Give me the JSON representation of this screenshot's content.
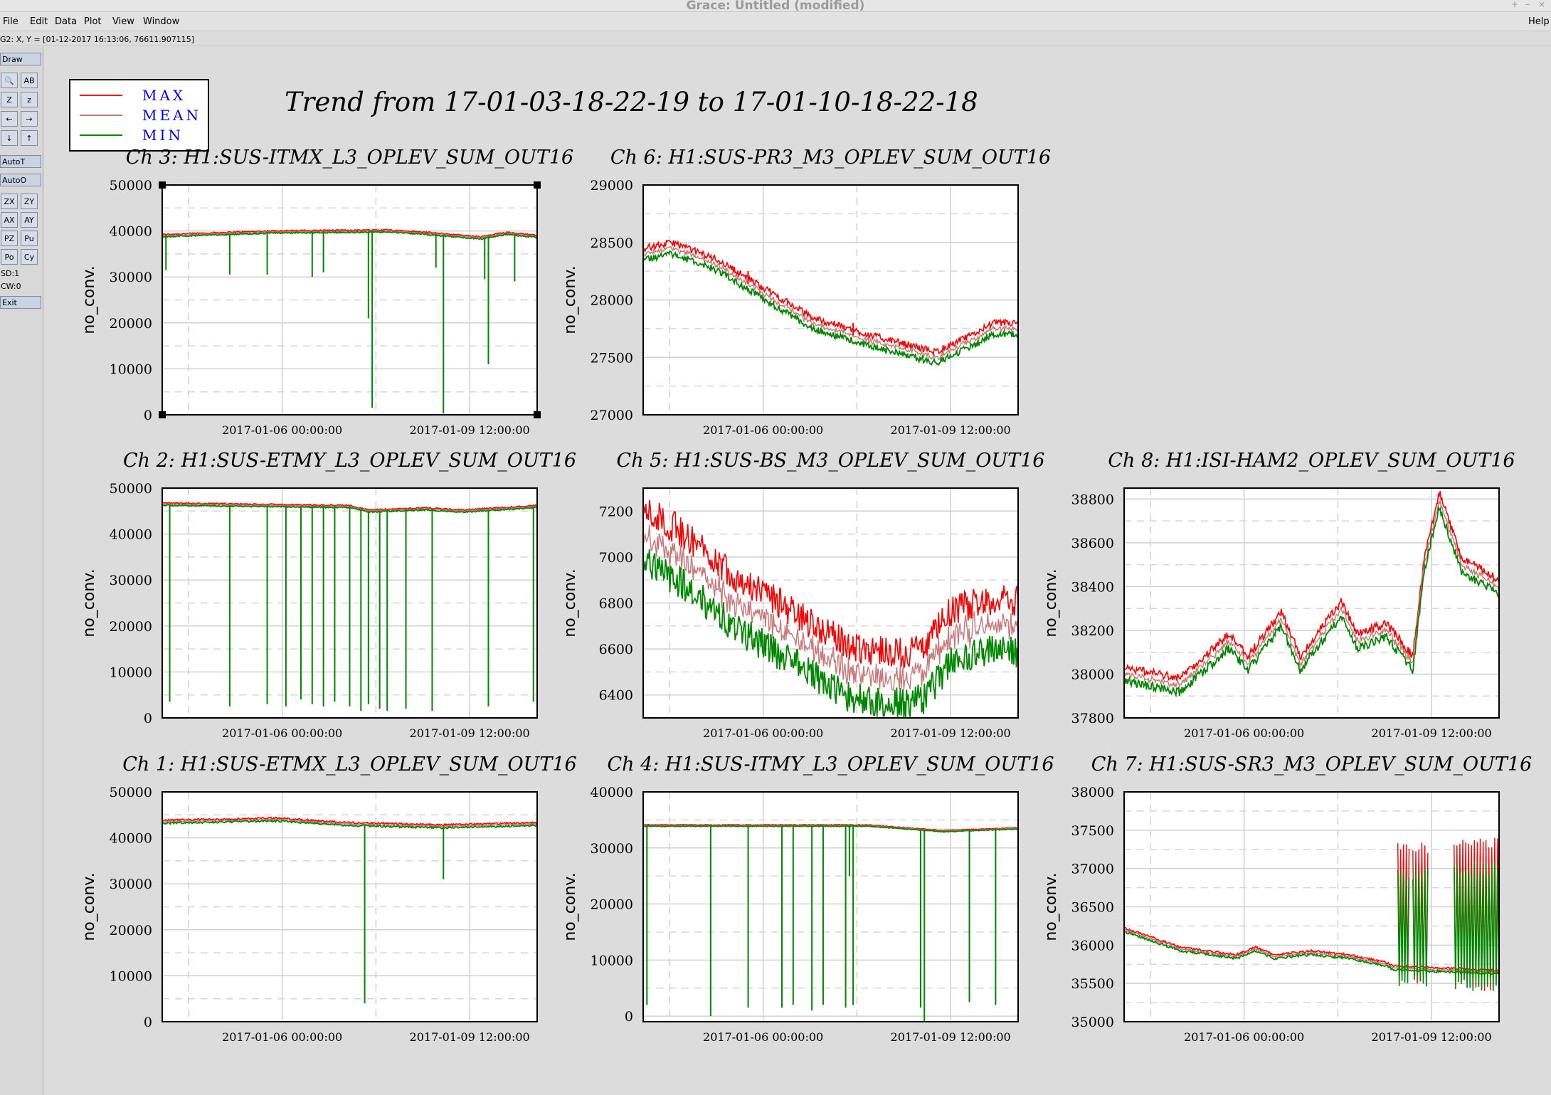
{
  "window": {
    "title": "Grace: Untitled (modified)",
    "controls": [
      "+",
      "–",
      "×"
    ]
  },
  "menu": {
    "items": [
      "File",
      "Edit",
      "Data",
      "Plot",
      "View",
      "Window"
    ],
    "help": "Help"
  },
  "status": {
    "text": "G2: X, Y = [01-12-2017 16:13:06, 76611.907115]"
  },
  "toolbar": {
    "draw": "Draw",
    "tools": [
      [
        "🔍",
        "AB"
      ],
      [
        "Z",
        "z"
      ],
      [
        "←",
        "→"
      ],
      [
        "↓",
        "↑"
      ]
    ],
    "autot": "AutoT",
    "autoo": "AutoO",
    "pairs": [
      [
        "ZX",
        "ZY"
      ],
      [
        "AX",
        "AY"
      ],
      [
        "PZ",
        "Pu"
      ],
      [
        "Po",
        "Cy"
      ]
    ],
    "sd": "SD:1",
    "cw": "CW:0",
    "exit": "Exit"
  },
  "figure": {
    "title": "Trend from 17-01-03-18-22-19 to 17-01-10-18-22-18",
    "legend": [
      {
        "label": "MAX",
        "color": "#ff0000"
      },
      {
        "label": "MEAN",
        "color": "#c87878"
      },
      {
        "label": "MIN",
        "color": "#008800"
      }
    ],
    "xtick_labels": [
      "2017-01-06 00:00:00",
      "2017-01-09 12:00:00"
    ]
  },
  "chart_data": [
    {
      "type": "line",
      "title": "Ch 3: H1:SUS-ITMX_L3_OPLEV_SUM_OUT16",
      "ylabel": "no_conv.",
      "ylim": [
        0,
        50000
      ],
      "yticks": [
        0,
        10000,
        20000,
        30000,
        40000,
        50000
      ],
      "base": [
        [
          0,
          39000
        ],
        [
          0.3,
          39800
        ],
        [
          0.6,
          40000
        ],
        [
          0.7,
          39500
        ],
        [
          0.85,
          38500
        ],
        [
          0.92,
          39500
        ],
        [
          1,
          38800
        ]
      ],
      "noise": 300,
      "dips": [
        [
          0.01,
          31500
        ],
        [
          0.18,
          30500
        ],
        [
          0.28,
          30500
        ],
        [
          0.4,
          30000
        ],
        [
          0.43,
          31000
        ],
        [
          0.55,
          21000
        ],
        [
          0.56,
          1500
        ],
        [
          0.73,
          32000
        ],
        [
          0.75,
          300
        ],
        [
          0.86,
          29500
        ],
        [
          0.87,
          11000
        ],
        [
          0.94,
          29000
        ]
      ],
      "spikes": []
    },
    {
      "type": "line",
      "title": "Ch 6: H1:SUS-PR3_M3_OPLEV_SUM_OUT16",
      "ylabel": "no_conv.",
      "ylim": [
        27000,
        29000
      ],
      "yticks": [
        27000,
        27500,
        28000,
        28500,
        29000
      ],
      "base": [
        [
          0,
          28400
        ],
        [
          0.08,
          28450
        ],
        [
          0.2,
          28300
        ],
        [
          0.35,
          28000
        ],
        [
          0.45,
          27800
        ],
        [
          0.6,
          27650
        ],
        [
          0.78,
          27500
        ],
        [
          0.88,
          27650
        ],
        [
          0.93,
          27750
        ],
        [
          1,
          27750
        ]
      ],
      "noise": 60,
      "dips": [],
      "spikes": [
        [
          0.28,
          28250
        ],
        [
          0.56,
          27800
        ]
      ]
    },
    {
      "type": "line",
      "title": "Ch 2: H1:SUS-ETMY_L3_OPLEV_SUM_OUT16",
      "ylabel": "no_conv.",
      "ylim": [
        0,
        50000
      ],
      "yticks": [
        0,
        10000,
        20000,
        30000,
        40000,
        50000
      ],
      "base": [
        [
          0,
          46500
        ],
        [
          0.3,
          46200
        ],
        [
          0.5,
          46000
        ],
        [
          0.55,
          45000
        ],
        [
          0.7,
          45500
        ],
        [
          0.8,
          45000
        ],
        [
          1,
          46000
        ]
      ],
      "noise": 300,
      "dips": [
        [
          0.02,
          3500
        ],
        [
          0.18,
          2500
        ],
        [
          0.28,
          3000
        ],
        [
          0.33,
          2500
        ],
        [
          0.37,
          4000
        ],
        [
          0.4,
          3000
        ],
        [
          0.43,
          2500
        ],
        [
          0.46,
          3500
        ],
        [
          0.5,
          2500
        ],
        [
          0.53,
          1500
        ],
        [
          0.55,
          3000
        ],
        [
          0.58,
          2000
        ],
        [
          0.6,
          1500
        ],
        [
          0.65,
          2000
        ],
        [
          0.72,
          1500
        ],
        [
          0.87,
          2500
        ],
        [
          0.99,
          3500
        ]
      ],
      "spikes": []
    },
    {
      "type": "line",
      "title": "Ch 5: H1:SUS-BS_M3_OPLEV_SUM_OUT16",
      "ylabel": "no_conv.",
      "ylim": [
        6300,
        7300
      ],
      "yticks": [
        6400,
        6600,
        6800,
        7000,
        7200
      ],
      "base": [
        [
          0,
          7100
        ],
        [
          0.1,
          7000
        ],
        [
          0.25,
          6800
        ],
        [
          0.4,
          6650
        ],
        [
          0.55,
          6500
        ],
        [
          0.7,
          6470
        ],
        [
          0.75,
          6500
        ],
        [
          0.82,
          6650
        ],
        [
          0.9,
          6700
        ],
        [
          1,
          6700
        ]
      ],
      "noise": 140,
      "dips": [],
      "spikes": []
    },
    {
      "type": "line",
      "title": "Ch 8: H1:ISI-HAM2_OPLEV_SUM_OUT16",
      "ylabel": "no_conv.",
      "ylim": [
        37800,
        38850
      ],
      "yticks": [
        37800,
        38000,
        38200,
        38400,
        38600,
        38800
      ],
      "base": [
        [
          0,
          38000
        ],
        [
          0.15,
          37950
        ],
        [
          0.28,
          38150
        ],
        [
          0.33,
          38050
        ],
        [
          0.42,
          38250
        ],
        [
          0.47,
          38050
        ],
        [
          0.58,
          38300
        ],
        [
          0.62,
          38150
        ],
        [
          0.7,
          38200
        ],
        [
          0.77,
          38050
        ],
        [
          0.8,
          38500
        ],
        [
          0.84,
          38800
        ],
        [
          0.9,
          38500
        ],
        [
          1,
          38400
        ]
      ],
      "noise": 40,
      "dips": [],
      "spikes": []
    },
    {
      "type": "line",
      "title": "Ch 1: H1:SUS-ETMX_L3_OPLEV_SUM_OUT16",
      "ylabel": "no_conv.",
      "ylim": [
        0,
        50000
      ],
      "yticks": [
        0,
        10000,
        20000,
        30000,
        40000,
        50000
      ],
      "base": [
        [
          0,
          43500
        ],
        [
          0.3,
          44000
        ],
        [
          0.5,
          43000
        ],
        [
          0.75,
          42500
        ],
        [
          1,
          43000
        ]
      ],
      "noise": 400,
      "dips": [
        [
          0.54,
          4000
        ],
        [
          0.75,
          31000
        ]
      ],
      "spikes": []
    },
    {
      "type": "line",
      "title": "Ch 4: H1:SUS-ITMY_L3_OPLEV_SUM_OUT16",
      "ylabel": "no_conv.",
      "ylim": [
        -1000,
        40000
      ],
      "yticks": [
        0,
        10000,
        20000,
        30000,
        40000
      ],
      "base": [
        [
          0,
          34000
        ],
        [
          0.6,
          34000
        ],
        [
          0.8,
          33000
        ],
        [
          1,
          33500
        ]
      ],
      "noise": 150,
      "dips": [
        [
          0.01,
          2000
        ],
        [
          0.18,
          0
        ],
        [
          0.28,
          1500
        ],
        [
          0.37,
          1500
        ],
        [
          0.4,
          2000
        ],
        [
          0.45,
          1000
        ],
        [
          0.48,
          2000
        ],
        [
          0.54,
          1500
        ],
        [
          0.55,
          25000
        ],
        [
          0.56,
          2000
        ],
        [
          0.74,
          1500
        ],
        [
          0.75,
          -1500
        ],
        [
          0.87,
          2500
        ],
        [
          0.94,
          2000
        ]
      ],
      "spikes": []
    },
    {
      "type": "line",
      "title": "Ch 7: H1:SUS-SR3_M3_OPLEV_SUM_OUT16",
      "ylabel": "no_conv.",
      "ylim": [
        35000,
        38000
      ],
      "yticks": [
        35000,
        35500,
        36000,
        36500,
        37000,
        37500,
        38000
      ],
      "base": [
        [
          0,
          36200
        ],
        [
          0.15,
          35950
        ],
        [
          0.3,
          35850
        ],
        [
          0.35,
          35950
        ],
        [
          0.4,
          35850
        ],
        [
          0.5,
          35900
        ],
        [
          0.6,
          35850
        ],
        [
          0.7,
          35750
        ],
        [
          0.72,
          35700
        ],
        [
          1,
          35650
        ]
      ],
      "noise": 30,
      "dips": [],
      "spikes": [],
      "bands": [
        [
          0.73,
          0.76,
          35450,
          37350
        ],
        [
          0.77,
          0.81,
          35450,
          37350
        ],
        [
          0.88,
          1.0,
          35400,
          37400
        ]
      ]
    }
  ]
}
